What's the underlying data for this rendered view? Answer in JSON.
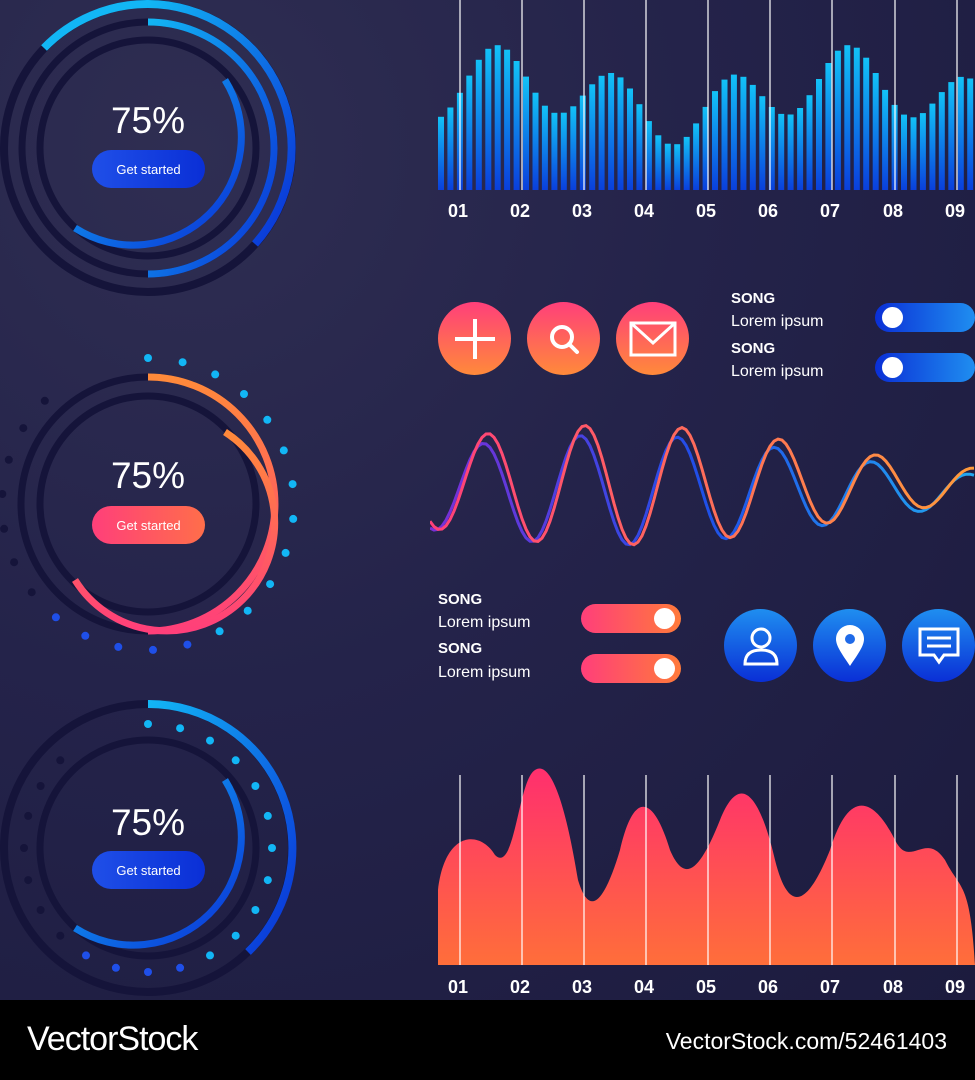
{
  "dials": [
    {
      "value": "75%",
      "button": "Get started"
    },
    {
      "value": "75%",
      "button": "Get started"
    },
    {
      "value": "75%",
      "button": "Get started"
    }
  ],
  "top_chart": {
    "ticks": [
      "01",
      "02",
      "03",
      "04",
      "05",
      "06",
      "07",
      "08",
      "09"
    ]
  },
  "bottom_chart": {
    "ticks": [
      "01",
      "02",
      "03",
      "04",
      "05",
      "06",
      "07",
      "08",
      "09"
    ]
  },
  "songs_top": [
    {
      "title": "SONG",
      "subtitle": "Lorem ipsum"
    },
    {
      "title": "SONG",
      "subtitle": "Lorem ipsum"
    }
  ],
  "songs_mid": [
    {
      "title": "SONG",
      "subtitle": "Lorem ipsum"
    },
    {
      "title": "SONG",
      "subtitle": "Lorem ipsum"
    }
  ],
  "icons_top": [
    "plus-icon",
    "search-icon",
    "mail-icon"
  ],
  "icons_mid": [
    "user-icon",
    "location-pin-icon",
    "chat-icon"
  ],
  "colors": {
    "blue": "#1f4fe8",
    "cyan": "#12b6f5",
    "pink": "#ff3f7a",
    "orange": "#ff8a3a"
  },
  "footer": {
    "brand": "VectorStock",
    "stock_id": "VectorStock.com/52461403"
  }
}
